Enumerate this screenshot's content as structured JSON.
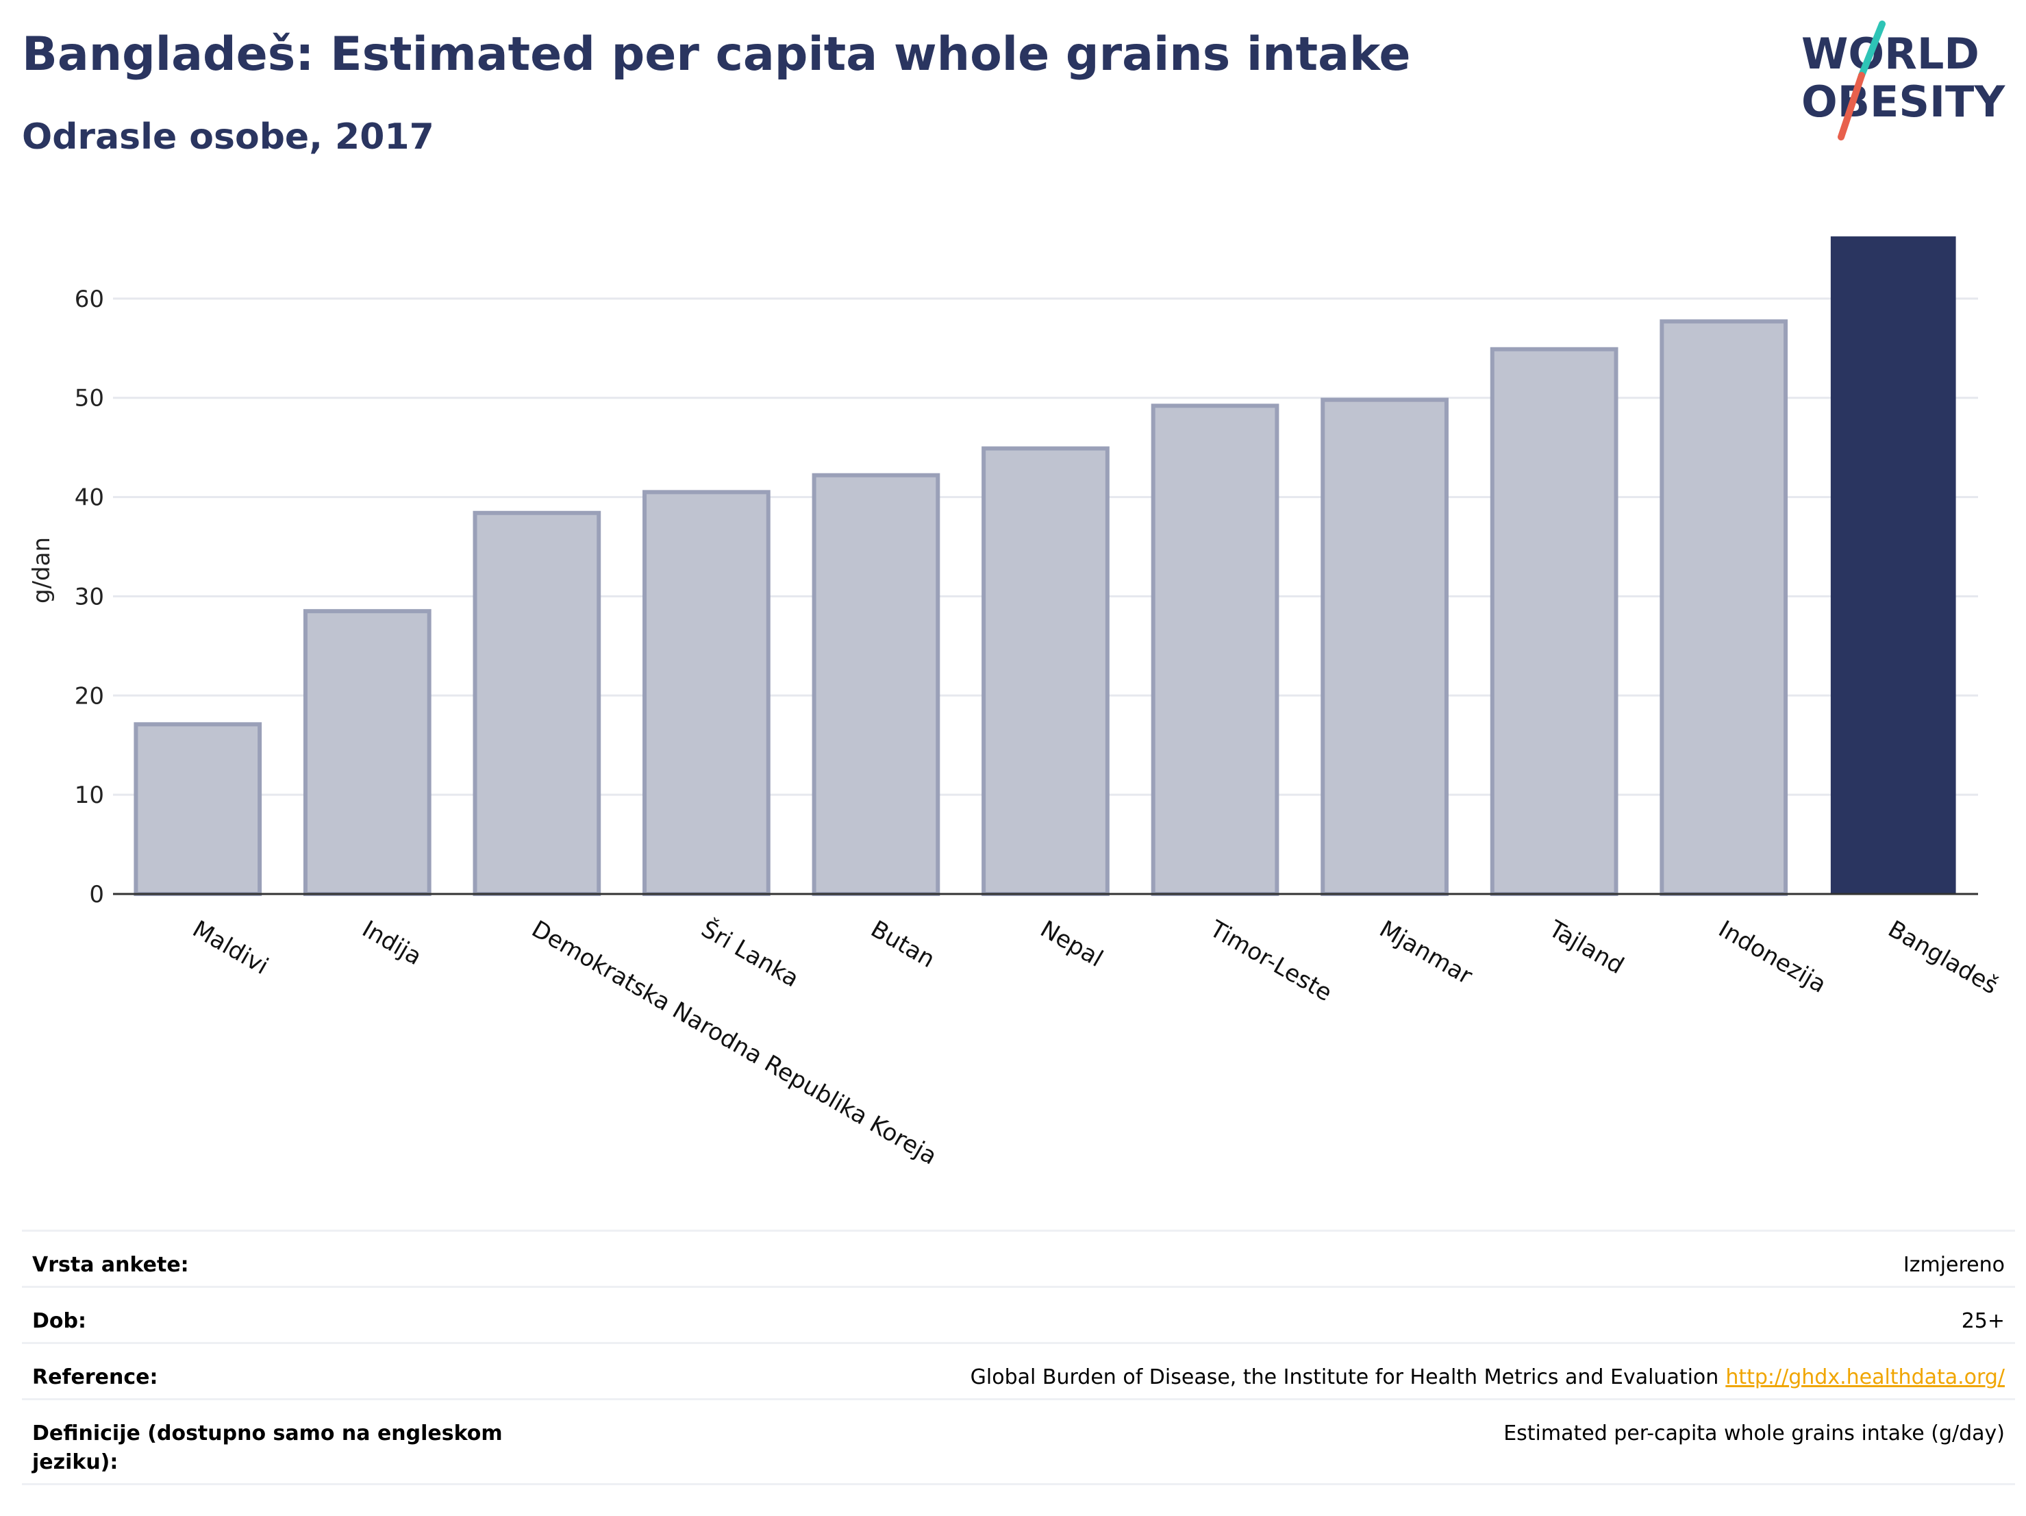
{
  "header": {
    "title": "Bangladeš: Estimated per capita whole grains intake",
    "subtitle": "Odrasle osobe, 2017"
  },
  "logo": {
    "line1": "WORLD",
    "line2": "OBESITY",
    "colors": {
      "text": "#2a3560",
      "accent_teal": "#2ec4b6",
      "accent_coral": "#e8604c"
    }
  },
  "chart_data": {
    "type": "bar",
    "ylabel": "g/dan",
    "ylim": [
      0,
      68
    ],
    "yticks": [
      0,
      10,
      20,
      30,
      40,
      50,
      60
    ],
    "grid": true,
    "categories": [
      "Maldivi",
      "Indija",
      "Demokratska Narodna Republika Koreja",
      "Šri Lanka",
      "Butan",
      "Nepal",
      "Timor-Leste",
      "Mjanmar",
      "Tajland",
      "Indonezija",
      "Bangladeš"
    ],
    "values": [
      17.1,
      28.5,
      38.4,
      40.5,
      42.2,
      44.9,
      49.2,
      49.8,
      54.9,
      57.7,
      66.2
    ],
    "highlight": "Bangladeš",
    "colors": {
      "highlight": "#2a3560",
      "bar_fill": "#bfc3d0",
      "bar_stroke": "#9aa0b8"
    }
  },
  "meta": [
    {
      "key": "Vrsta ankete:",
      "value": "Izmjereno"
    },
    {
      "key": "Dob:",
      "value": "25+"
    },
    {
      "key": "Reference:",
      "value": "Global Burden of Disease, the Institute for Health Metrics and Evaluation",
      "link": "http://ghdx.healthdata.org/"
    },
    {
      "key": "Definicije (dostupno samo na engleskom jeziku):",
      "value": "Estimated per-capita whole grains intake (g/day)"
    }
  ]
}
